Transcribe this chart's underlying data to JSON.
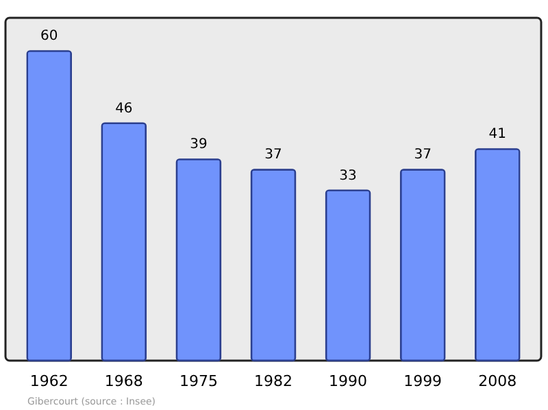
{
  "chart_data": {
    "type": "bar",
    "categories": [
      "1962",
      "1968",
      "1975",
      "1982",
      "1990",
      "1999",
      "2008"
    ],
    "values": [
      60,
      46,
      39,
      37,
      33,
      37,
      41
    ],
    "color": "#7093fc",
    "data_labels": true,
    "annotations": [
      "Gibercourt    (source : Insee)"
    ]
  }
}
